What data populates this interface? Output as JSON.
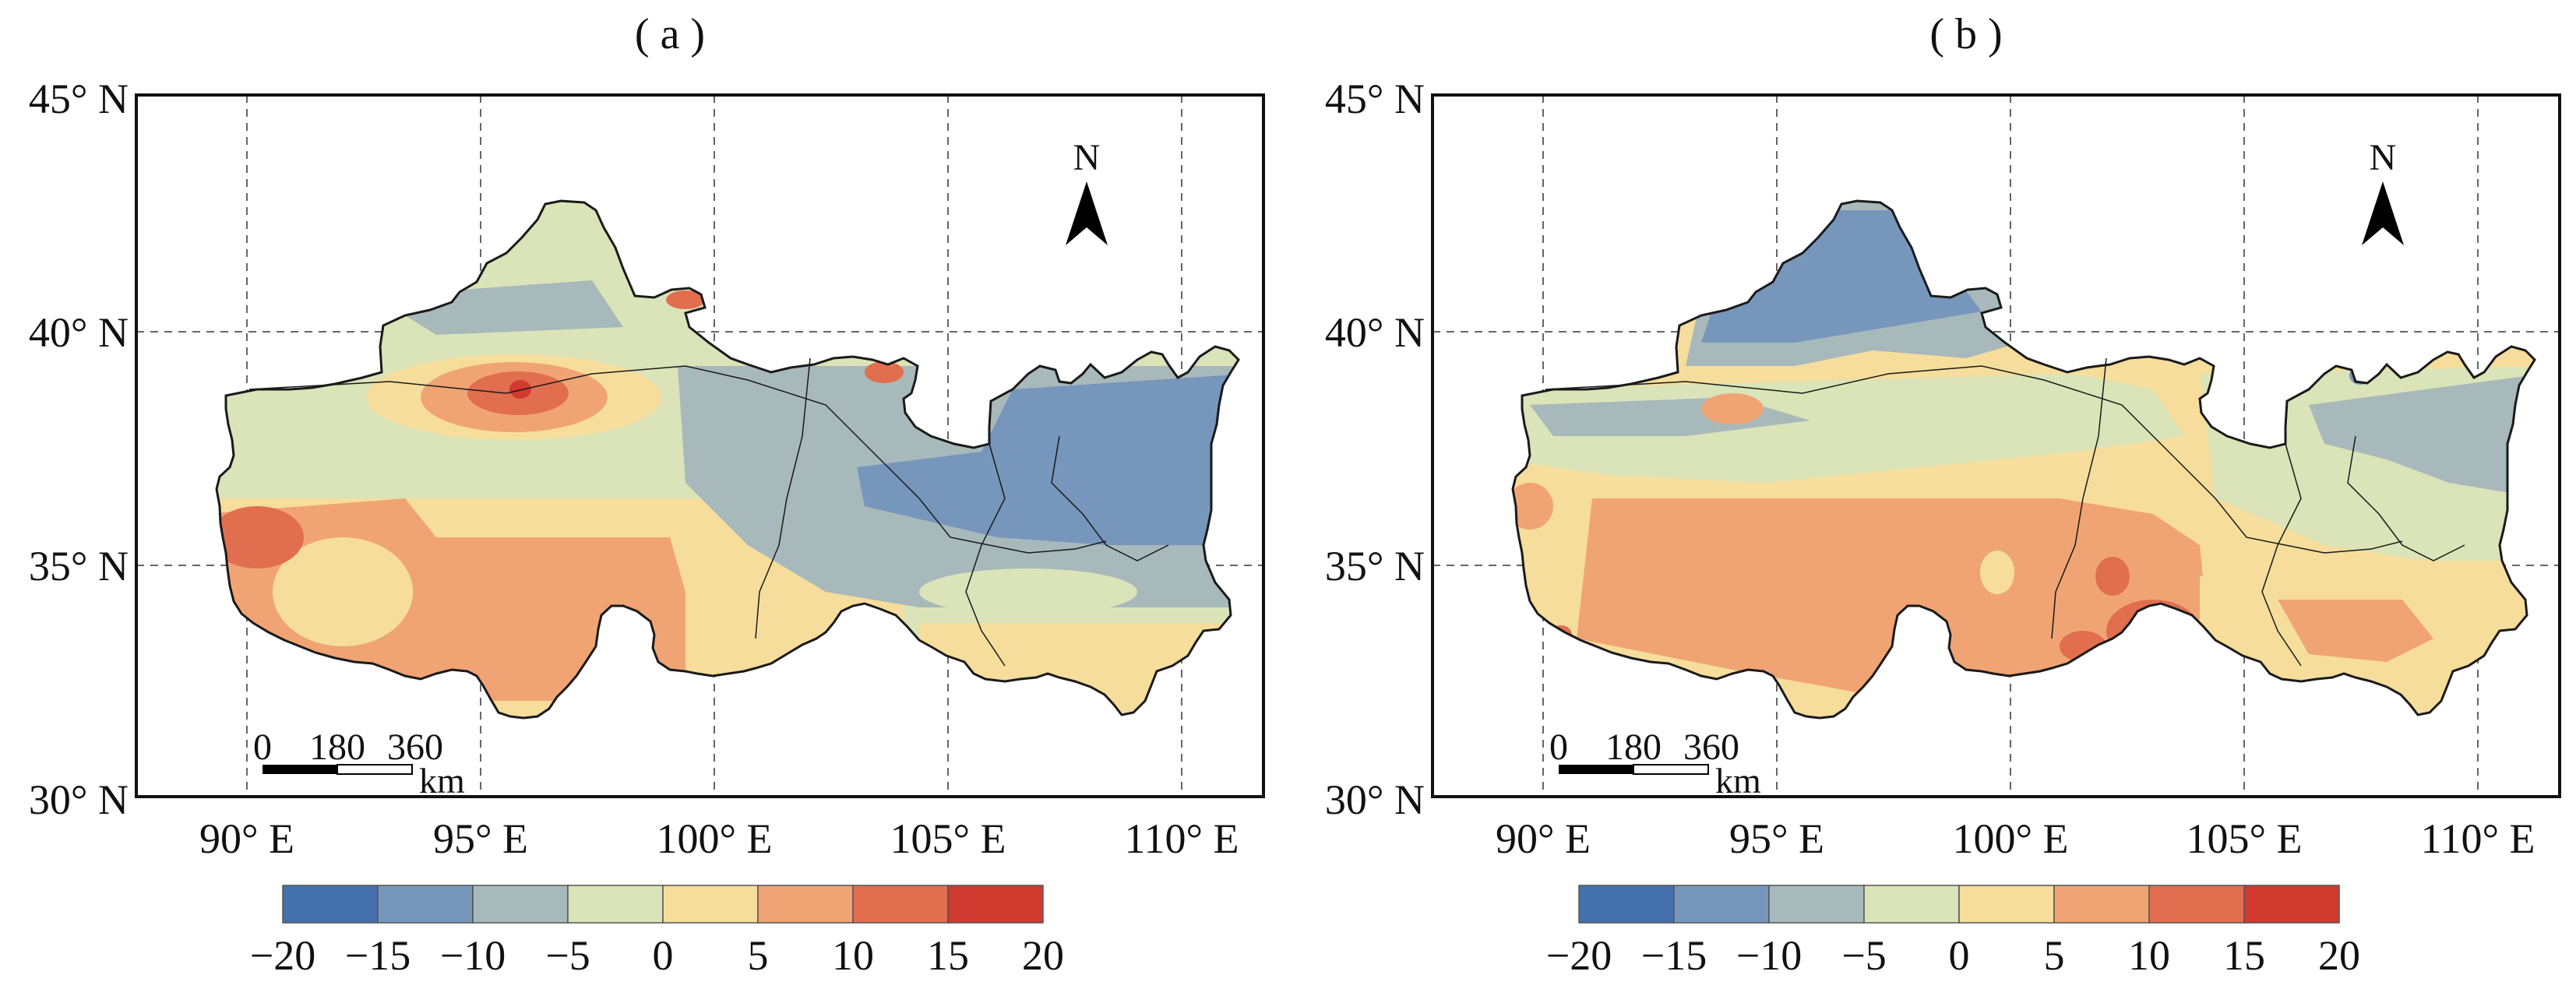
{
  "panels": [
    {
      "id": "a",
      "label": "( a )",
      "x_ticks": [
        {
          "value": 90,
          "text": "90° E"
        },
        {
          "value": 95,
          "text": "95° E"
        },
        {
          "value": 100,
          "text": "100° E"
        },
        {
          "value": 105,
          "text": "105° E"
        },
        {
          "value": 110,
          "text": "110° E"
        }
      ],
      "y_ticks": [
        {
          "value": 30,
          "text": "30° N"
        },
        {
          "value": 35,
          "text": "35° N"
        },
        {
          "value": 40,
          "text": "40° N"
        },
        {
          "value": 45,
          "text": "45° N"
        }
      ],
      "north_arrow": "N",
      "scale_bar": {
        "ticks": [
          "0",
          "180",
          "360"
        ],
        "unit": "km"
      },
      "colorbar": {
        "tick_labels": [
          "−20",
          "−15",
          "−10",
          "−5",
          "0",
          "5",
          "10",
          "15",
          "20"
        ],
        "colors": [
          "#4470ad",
          "#7796bc",
          "#a8b9bb",
          "#dbe3b8",
          "#f6dd9c",
          "#f0a474",
          "#e16e4f",
          "#d03a2f"
        ]
      }
    },
    {
      "id": "b",
      "label": "( b )",
      "x_ticks": [
        {
          "value": 90,
          "text": "90° E"
        },
        {
          "value": 95,
          "text": "95° E"
        },
        {
          "value": 100,
          "text": "100° E"
        },
        {
          "value": 105,
          "text": "105° E"
        },
        {
          "value": 110,
          "text": "110° E"
        }
      ],
      "y_ticks": [
        {
          "value": 30,
          "text": "30° N"
        },
        {
          "value": 35,
          "text": "35° N"
        },
        {
          "value": 40,
          "text": "40° N"
        },
        {
          "value": 45,
          "text": "45° N"
        }
      ],
      "north_arrow": "N",
      "scale_bar": {
        "ticks": [
          "0",
          "180",
          "360"
        ],
        "unit": "km"
      },
      "colorbar": {
        "tick_labels": [
          "−20",
          "−15",
          "−10",
          "−5",
          "0",
          "5",
          "10",
          "15",
          "20"
        ],
        "colors": [
          "#4470ad",
          "#7796bc",
          "#a8b9bb",
          "#dbe3b8",
          "#f6dd9c",
          "#f0a474",
          "#e16e4f",
          "#d03a2f"
        ]
      }
    }
  ],
  "map_extent": {
    "lon": [
      87.5,
      111.7
    ],
    "lat": [
      30,
      45
    ]
  },
  "colors": {
    "frame": "#111111",
    "grid": "#666666",
    "boundary": "#1a1a1a"
  }
}
